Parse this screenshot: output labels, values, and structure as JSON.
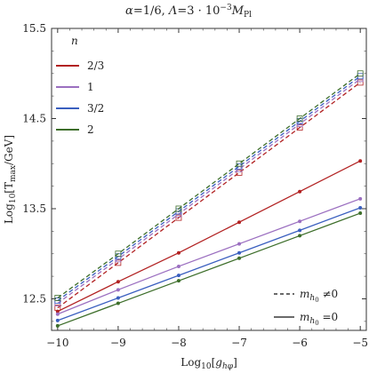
{
  "chart_data": {
    "type": "line",
    "title": "α = 1/6, Λ = 3 · 10⁻³ M_Pl",
    "xlabel": "Log₁₀[g_hφ]",
    "ylabel": "Log₁₀[T_max/GeV]",
    "xlim": [
      -10.1,
      -4.9
    ],
    "ylim": [
      12.15,
      15.5
    ],
    "x_ticks": [
      -10,
      -9,
      -8,
      -7,
      -6,
      -5
    ],
    "y_ticks": [
      12.5,
      13.5,
      14.5,
      15.5
    ],
    "y_tick_labels": [
      "12.5",
      "13.5",
      "14.5",
      "15.5"
    ],
    "x": [
      -10,
      -9,
      -8,
      -7,
      -6,
      -5
    ],
    "legend_title": "n",
    "legend_position": "top-left",
    "series": [
      {
        "name": "2/3",
        "color": "#b22222",
        "style": "solid",
        "values": [
          12.36,
          12.69,
          13.01,
          13.35,
          13.69,
          14.03
        ]
      },
      {
        "name": "1",
        "color": "#9b6fc0",
        "style": "solid",
        "values": [
          12.33,
          12.6,
          12.86,
          13.11,
          13.36,
          13.61
        ]
      },
      {
        "name": "3/2",
        "color": "#3a5fbf",
        "style": "solid",
        "values": [
          12.26,
          12.51,
          12.76,
          13.01,
          13.26,
          13.51
        ]
      },
      {
        "name": "2",
        "color": "#3d6e2a",
        "style": "solid",
        "values": [
          12.2,
          12.45,
          12.7,
          12.95,
          13.2,
          13.45
        ]
      },
      {
        "name": "2/3",
        "color": "#b22222",
        "style": "dashed",
        "values": [
          12.4,
          12.9,
          13.4,
          13.9,
          14.4,
          14.9
        ]
      },
      {
        "name": "1",
        "color": "#9b6fc0",
        "style": "dashed",
        "values": [
          12.45,
          12.94,
          13.44,
          13.94,
          14.44,
          14.94
        ]
      },
      {
        "name": "3/2",
        "color": "#3a5fbf",
        "style": "dashed",
        "values": [
          12.48,
          12.97,
          13.47,
          13.97,
          14.47,
          14.97
        ]
      },
      {
        "name": "2",
        "color": "#3d6e2a",
        "style": "dashed",
        "values": [
          12.51,
          13.0,
          13.5,
          14.0,
          14.5,
          15.0
        ]
      }
    ],
    "style_legend": [
      {
        "label": "m_h0 ≠ 0",
        "style": "dashed"
      },
      {
        "label": "m_h0 = 0",
        "style": "solid"
      }
    ],
    "legend_entries": [
      {
        "label": "2/3",
        "color": "#b22222"
      },
      {
        "label": "1",
        "color": "#9b6fc0"
      },
      {
        "label": "3/2",
        "color": "#3a5fbf"
      },
      {
        "label": "2",
        "color": "#3d6e2a"
      }
    ],
    "grid": false
  }
}
